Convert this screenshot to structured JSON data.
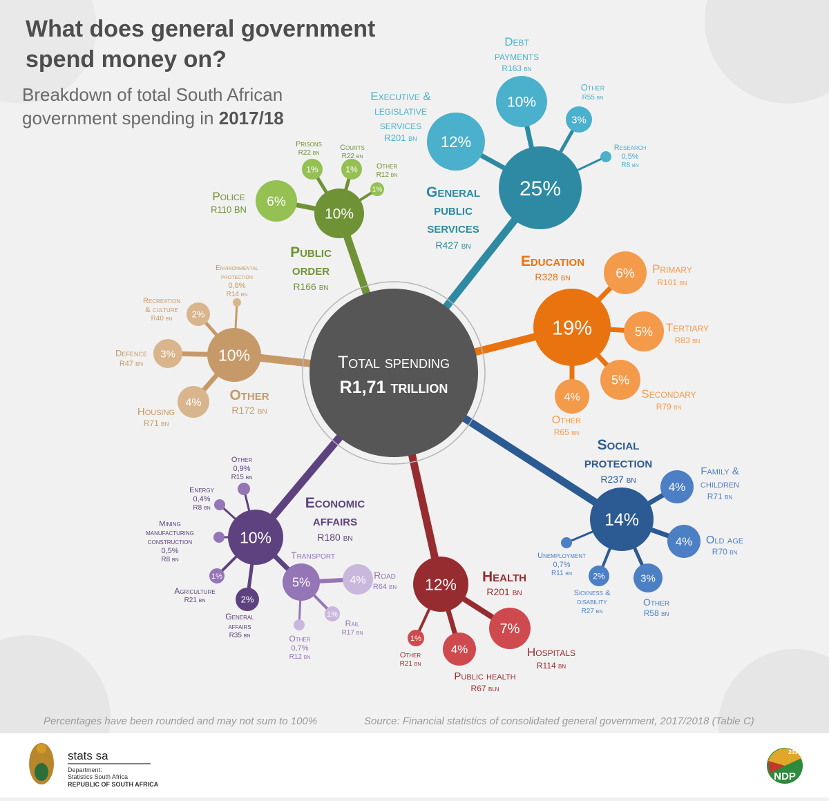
{
  "title_line1": "What does general government",
  "title_line2": "spend money on?",
  "subtitle_line1": "Breakdown of total South African",
  "subtitle_line2_prefix": "government spending in",
  "subtitle_year": "2017/18",
  "center": {
    "label": "Total spending",
    "value": "R1,71 trillion"
  },
  "colors": {
    "general_public_services": "#2e8aa2",
    "general_public_services_light": "#4bb0cb",
    "education": "#e9730f",
    "education_light": "#f49a4b",
    "social_protection": "#2c5a92",
    "social_protection_light": "#4c7fc4",
    "health": "#962c30",
    "health_light": "#cf4a4f",
    "economic_affairs": "#5e427f",
    "economic_affairs_light": "#9475b6",
    "other": "#c69a68",
    "other_light": "#d8b58d",
    "public_order": "#6f9236",
    "public_order_light": "#95c052",
    "center": "#565656"
  },
  "categories": [
    {
      "name_line1": "General",
      "name_line2": "public",
      "name_line3": "services",
      "amount": "R427 bn",
      "pct": "25%",
      "subs": [
        {
          "pct": "12%",
          "line1": "Executive &",
          "line2": "legislative",
          "line3": "services",
          "amount": "R201 bn"
        },
        {
          "pct": "10%",
          "line1": "Debt",
          "line2": "payments",
          "amount": "R163 bn"
        },
        {
          "pct": "3%",
          "line1": "Other",
          "amount": "R55 bn"
        },
        {
          "pct": "",
          "line1": "Research",
          "line2": "0,5%",
          "amount": "R8 bn"
        }
      ]
    },
    {
      "name_line1": "Education",
      "amount": "R328 bn",
      "pct": "19%",
      "subs": [
        {
          "pct": "6%",
          "line1": "Primary",
          "amount": "R101 bn"
        },
        {
          "pct": "5%",
          "line1": "Tertiary",
          "amount": "R83 bn"
        },
        {
          "pct": "5%",
          "line1": "Secondary",
          "amount": "R79 bn"
        },
        {
          "pct": "4%",
          "line1": "Other",
          "amount": "R65 bn"
        }
      ]
    },
    {
      "name_line1": "Social",
      "name_line2": "protection",
      "amount": "R237 bn",
      "pct": "14%",
      "subs": [
        {
          "pct": "4%",
          "line1": "Family &",
          "line2": "children",
          "amount": "R71 bn"
        },
        {
          "pct": "4%",
          "line1": "Old age",
          "amount": "R70 bn"
        },
        {
          "pct": "3%",
          "line1": "Other",
          "amount": "R58 bn"
        },
        {
          "pct": "2%",
          "line1": "Sickness &",
          "line2": "disability",
          "amount": "R27 bn"
        },
        {
          "pct": "",
          "line1": "Unemployment",
          "line2": "0,7%",
          "amount": "R11 bn"
        }
      ]
    },
    {
      "name_line1": "Health",
      "amount": "R201 bn",
      "pct": "12%",
      "subs": [
        {
          "pct": "7%",
          "line1": "Hospitals",
          "amount": "R114 bn"
        },
        {
          "pct": "4%",
          "line1": "Public health",
          "amount": "R67 bln"
        },
        {
          "pct": "1%",
          "line1": "Other",
          "amount": "R21 bn"
        }
      ]
    },
    {
      "name_line1": "Economic",
      "name_line2": "affairs",
      "amount": "R180 bn",
      "pct": "10%",
      "subs": [
        {
          "pct": "5%",
          "line1": "Transport",
          "amount": "",
          "subs": [
            {
              "pct": "4%",
              "line1": "Road",
              "amount": "R64 bn"
            },
            {
              "pct": "1%",
              "line1": "Rail",
              "amount": "R17 bn"
            },
            {
              "pct": "",
              "line1": "Other",
              "line2": "0,7%",
              "amount": "R12 bn"
            }
          ]
        },
        {
          "pct": "2%",
          "line1": "General",
          "line2": "affairs",
          "amount": "R35 bn"
        },
        {
          "pct": "1%",
          "line1": "Agriculture",
          "amount": "R21 bn"
        },
        {
          "pct": "",
          "line1": "Mining",
          "line2": "manufacturing",
          "line3": "construction",
          "line4": "0,5%",
          "amount": "R8 bn"
        },
        {
          "pct": "",
          "line1": "Energy",
          "line2": "0,4%",
          "amount": "R8 bn"
        },
        {
          "pct": "",
          "line1": "Other",
          "line2": "0,9%",
          "amount": "R15 bn"
        }
      ]
    },
    {
      "name_line1": "Other",
      "amount": "R172 bn",
      "pct": "10%",
      "subs": [
        {
          "pct": "4%",
          "line1": "Housing",
          "amount": "R71 bn"
        },
        {
          "pct": "3%",
          "line1": "Defence",
          "amount": "R47 bn"
        },
        {
          "pct": "2%",
          "line1": "Recreation",
          "line2": "& culture",
          "amount": "R40 bn"
        },
        {
          "pct": "",
          "line1": "Environmental",
          "line2": "protection",
          "line3": "0,8%",
          "amount": "R14 bn"
        }
      ]
    },
    {
      "name_line1": "Public",
      "name_line2": "order",
      "amount": "R166 bn",
      "pct": "10%",
      "subs": [
        {
          "pct": "6%",
          "line1": "Police",
          "amount": "R110 BN"
        },
        {
          "pct": "1%",
          "line1": "Prisons",
          "amount": "R22 bn"
        },
        {
          "pct": "1%",
          "line1": "Courts",
          "amount": "R22 bn"
        },
        {
          "pct": "1%",
          "line1": "Other",
          "amount": "R12 bn"
        }
      ]
    }
  ],
  "footnote": "Percentages have been rounded and may not sum to 100%",
  "source": "Source: Financial statistics of consolidated general government, 2017/2018 (Table C)",
  "logo": {
    "name": "stats sa",
    "dept1": "Department:",
    "dept2": "Statistics South Africa",
    "dept3": "REPUBLIC OF SOUTH AFRICA"
  },
  "ndp": {
    "text": "NDP",
    "year": "2030"
  }
}
